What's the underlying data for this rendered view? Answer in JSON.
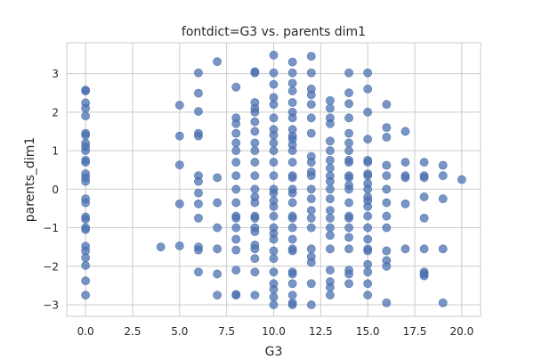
{
  "chart_data": {
    "type": "scatter",
    "title": "fontdict=G3 vs. parents dim1",
    "xlabel": "G3",
    "ylabel": "parents_dim1",
    "xlim": [
      -1.0,
      21.0
    ],
    "ylim": [
      -3.3,
      3.8
    ],
    "xticks": [
      0.0,
      2.5,
      5.0,
      7.5,
      10.0,
      12.5,
      15.0,
      17.5,
      20.0
    ],
    "xtick_labels": [
      "0.0",
      "2.5",
      "5.0",
      "7.5",
      "10.0",
      "12.5",
      "15.0",
      "17.5",
      "20.0"
    ],
    "yticks": [
      -3,
      -2,
      -1,
      0,
      1,
      2,
      3
    ],
    "ytick_labels": [
      "−3",
      "−2",
      "−1",
      "0",
      "1",
      "2",
      "3"
    ],
    "grid": true,
    "marker_color": "#4c72b0",
    "marker_alpha": 0.75,
    "points": [
      [
        0,
        2.57
      ],
      [
        0,
        2.55
      ],
      [
        0,
        2.24
      ],
      [
        0,
        2.1
      ],
      [
        0,
        1.9
      ],
      [
        0,
        1.45
      ],
      [
        0,
        1.4
      ],
      [
        0,
        1.2
      ],
      [
        0,
        1.1
      ],
      [
        0,
        1.0
      ],
      [
        0,
        0.75
      ],
      [
        0,
        0.7
      ],
      [
        0,
        0.4
      ],
      [
        0,
        0.3
      ],
      [
        0,
        0.2
      ],
      [
        0,
        -0.25
      ],
      [
        0,
        -0.35
      ],
      [
        0,
        -0.72
      ],
      [
        0,
        -0.78
      ],
      [
        0,
        -1.0
      ],
      [
        0,
        -1.05
      ],
      [
        0,
        -1.48
      ],
      [
        0,
        -1.6
      ],
      [
        0,
        -1.78
      ],
      [
        0,
        -1.98
      ],
      [
        0,
        -2.38
      ],
      [
        0,
        -2.75
      ],
      [
        4,
        -1.5
      ],
      [
        5,
        2.18
      ],
      [
        5,
        1.38
      ],
      [
        5,
        0.63
      ],
      [
        5,
        -0.38
      ],
      [
        5,
        -1.47
      ],
      [
        6,
        3.02
      ],
      [
        6,
        2.49
      ],
      [
        6,
        2.02
      ],
      [
        6,
        1.45
      ],
      [
        6,
        1.38
      ],
      [
        6,
        0.35
      ],
      [
        6,
        0.2
      ],
      [
        6,
        -0.1
      ],
      [
        6,
        -0.38
      ],
      [
        6,
        -0.75
      ],
      [
        6,
        -1.5
      ],
      [
        6,
        -1.58
      ],
      [
        6,
        -2.15
      ],
      [
        7,
        3.31
      ],
      [
        7,
        0.3
      ],
      [
        7,
        -0.35
      ],
      [
        7,
        -1.0
      ],
      [
        7,
        -1.55
      ],
      [
        7,
        -2.2
      ],
      [
        7,
        -2.75
      ],
      [
        8,
        2.65
      ],
      [
        8,
        1.85
      ],
      [
        8,
        1.7
      ],
      [
        8,
        1.45
      ],
      [
        8,
        1.2
      ],
      [
        8,
        1.0
      ],
      [
        8,
        0.7
      ],
      [
        8,
        0.35
      ],
      [
        8,
        0.0
      ],
      [
        8,
        -0.35
      ],
      [
        8,
        -0.7
      ],
      [
        8,
        -0.75
      ],
      [
        8,
        -1.0
      ],
      [
        8,
        -1.3
      ],
      [
        8,
        -1.58
      ],
      [
        8,
        -2.1
      ],
      [
        8,
        -2.73
      ],
      [
        8,
        -2.75
      ],
      [
        9,
        3.05
      ],
      [
        9,
        3.02
      ],
      [
        9,
        2.25
      ],
      [
        9,
        2.1
      ],
      [
        9,
        2.0
      ],
      [
        9,
        1.75
      ],
      [
        9,
        1.5
      ],
      [
        9,
        1.2
      ],
      [
        9,
        1.0
      ],
      [
        9,
        0.7
      ],
      [
        9,
        0.35
      ],
      [
        9,
        0.0
      ],
      [
        9,
        -0.2
      ],
      [
        9,
        -0.35
      ],
      [
        9,
        -0.7
      ],
      [
        9,
        -0.75
      ],
      [
        9,
        -1.0
      ],
      [
        9,
        -1.1
      ],
      [
        9,
        -1.45
      ],
      [
        9,
        -1.55
      ],
      [
        9,
        -1.8
      ],
      [
        9,
        -2.15
      ],
      [
        9,
        -2.75
      ],
      [
        10,
        3.48
      ],
      [
        10,
        3.02
      ],
      [
        10,
        2.72
      ],
      [
        10,
        2.38
      ],
      [
        10,
        2.2
      ],
      [
        10,
        1.85
      ],
      [
        10,
        1.55
      ],
      [
        10,
        1.4
      ],
      [
        10,
        1.2
      ],
      [
        10,
        1.0
      ],
      [
        10,
        0.7
      ],
      [
        10,
        0.35
      ],
      [
        10,
        0.0
      ],
      [
        10,
        -0.1
      ],
      [
        10,
        -0.3
      ],
      [
        10,
        -0.45
      ],
      [
        10,
        -0.7
      ],
      [
        10,
        -1.0
      ],
      [
        10,
        -1.15
      ],
      [
        10,
        -1.3
      ],
      [
        10,
        -1.6
      ],
      [
        10,
        -1.8
      ],
      [
        10,
        -2.15
      ],
      [
        10,
        -2.45
      ],
      [
        10,
        -2.6
      ],
      [
        10,
        -2.8
      ],
      [
        10,
        -3.0
      ],
      [
        11,
        3.3
      ],
      [
        11,
        3.02
      ],
      [
        11,
        2.75
      ],
      [
        11,
        2.55
      ],
      [
        11,
        2.25
      ],
      [
        11,
        2.0
      ],
      [
        11,
        1.85
      ],
      [
        11,
        1.55
      ],
      [
        11,
        1.38
      ],
      [
        11,
        1.3
      ],
      [
        11,
        1.15
      ],
      [
        11,
        1.0
      ],
      [
        11,
        0.7
      ],
      [
        11,
        0.35
      ],
      [
        11,
        0.3
      ],
      [
        11,
        0.0
      ],
      [
        11,
        -0.1
      ],
      [
        11,
        -0.35
      ],
      [
        11,
        -0.7
      ],
      [
        11,
        -0.75
      ],
      [
        11,
        -1.0
      ],
      [
        11,
        -1.3
      ],
      [
        11,
        -1.55
      ],
      [
        11,
        -1.6
      ],
      [
        11,
        -2.15
      ],
      [
        11,
        -2.2
      ],
      [
        11,
        -2.45
      ],
      [
        11,
        -2.75
      ],
      [
        11,
        -2.95
      ],
      [
        11,
        -3.0
      ],
      [
        12,
        3.45
      ],
      [
        12,
        3.02
      ],
      [
        12,
        2.6
      ],
      [
        12,
        2.45
      ],
      [
        12,
        2.2
      ],
      [
        12,
        1.85
      ],
      [
        12,
        1.45
      ],
      [
        12,
        0.85
      ],
      [
        12,
        0.7
      ],
      [
        12,
        0.45
      ],
      [
        12,
        0.35
      ],
      [
        12,
        0.0
      ],
      [
        12,
        -0.25
      ],
      [
        12,
        -0.55
      ],
      [
        12,
        -0.75
      ],
      [
        12,
        -1.0
      ],
      [
        12,
        -1.55
      ],
      [
        12,
        -1.75
      ],
      [
        12,
        -1.9
      ],
      [
        12,
        -2.45
      ],
      [
        12,
        -3.0
      ],
      [
        13,
        2.3
      ],
      [
        13,
        2.1
      ],
      [
        13,
        1.85
      ],
      [
        13,
        1.7
      ],
      [
        13,
        1.25
      ],
      [
        13,
        1.0
      ],
      [
        13,
        0.75
      ],
      [
        13,
        0.55
      ],
      [
        13,
        0.35
      ],
      [
        13,
        0.2
      ],
      [
        13,
        0.0
      ],
      [
        13,
        -0.25
      ],
      [
        13,
        -0.55
      ],
      [
        13,
        -0.75
      ],
      [
        13,
        -1.0
      ],
      [
        13,
        -1.2
      ],
      [
        13,
        -1.55
      ],
      [
        13,
        -2.1
      ],
      [
        13,
        -2.4
      ],
      [
        13,
        -2.55
      ],
      [
        13,
        -2.75
      ],
      [
        14,
        3.02
      ],
      [
        14,
        2.5
      ],
      [
        14,
        2.22
      ],
      [
        14,
        1.85
      ],
      [
        14,
        1.45
      ],
      [
        14,
        1.2
      ],
      [
        14,
        1.0
      ],
      [
        14,
        0.75
      ],
      [
        14,
        0.7
      ],
      [
        14,
        0.35
      ],
      [
        14,
        0.3
      ],
      [
        14,
        0.1
      ],
      [
        14,
        0.0
      ],
      [
        14,
        -0.35
      ],
      [
        14,
        -0.7
      ],
      [
        14,
        -0.75
      ],
      [
        14,
        -1.0
      ],
      [
        14,
        -1.25
      ],
      [
        14,
        -1.55
      ],
      [
        14,
        -2.1
      ],
      [
        14,
        -2.2
      ],
      [
        14,
        -2.45
      ],
      [
        15,
        3.02
      ],
      [
        15,
        2.6
      ],
      [
        15,
        2.0
      ],
      [
        15,
        1.3
      ],
      [
        15,
        0.75
      ],
      [
        15,
        0.7
      ],
      [
        15,
        0.4
      ],
      [
        15,
        0.35
      ],
      [
        15,
        0.15
      ],
      [
        15,
        0.0
      ],
      [
        15,
        -0.2
      ],
      [
        15,
        -0.3
      ],
      [
        15,
        -0.45
      ],
      [
        15,
        -0.7
      ],
      [
        15,
        -1.0
      ],
      [
        15,
        -1.3
      ],
      [
        15,
        -1.55
      ],
      [
        15,
        -1.6
      ],
      [
        15,
        -1.95
      ],
      [
        15,
        -2.15
      ],
      [
        15,
        -2.45
      ],
      [
        15,
        -2.75
      ],
      [
        16,
        2.2
      ],
      [
        16,
        1.6
      ],
      [
        16,
        1.35
      ],
      [
        16,
        0.62
      ],
      [
        16,
        0.35
      ],
      [
        16,
        0.0
      ],
      [
        16,
        -0.35
      ],
      [
        16,
        -0.7
      ],
      [
        16,
        -1.0
      ],
      [
        16,
        -1.6
      ],
      [
        16,
        -1.85
      ],
      [
        16,
        -2.0
      ],
      [
        16,
        -2.95
      ],
      [
        17,
        1.5
      ],
      [
        17,
        0.7
      ],
      [
        17,
        0.35
      ],
      [
        17,
        0.3
      ],
      [
        17,
        -0.38
      ],
      [
        17,
        -1.55
      ],
      [
        18,
        0.7
      ],
      [
        18,
        0.35
      ],
      [
        18,
        0.3
      ],
      [
        18,
        -0.2
      ],
      [
        18,
        -0.75
      ],
      [
        18,
        -1.55
      ],
      [
        18,
        -2.15
      ],
      [
        18,
        -2.2
      ],
      [
        18,
        -2.25
      ],
      [
        19,
        0.62
      ],
      [
        19,
        0.35
      ],
      [
        19,
        -0.25
      ],
      [
        19,
        -1.55
      ],
      [
        19,
        -2.95
      ],
      [
        20,
        0.25
      ]
    ]
  }
}
